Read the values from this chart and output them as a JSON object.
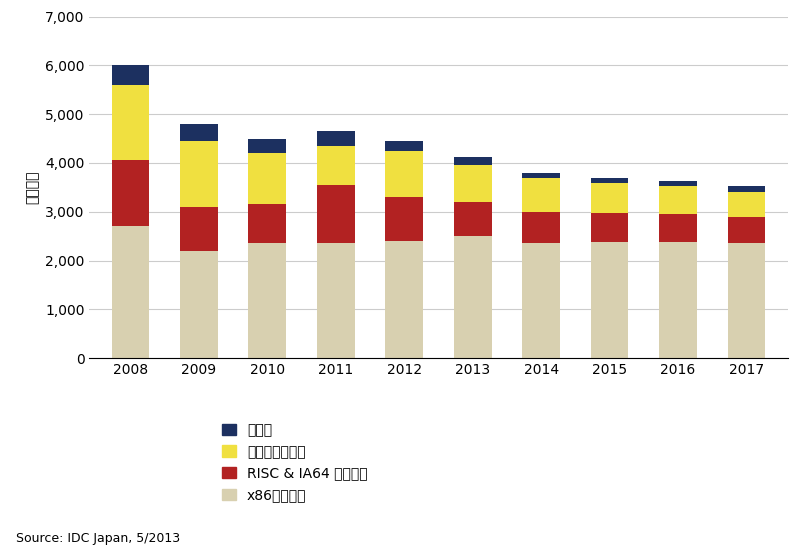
{
  "years": [
    2008,
    2009,
    2010,
    2011,
    2012,
    2013,
    2014,
    2015,
    2016,
    2017
  ],
  "x86": [
    2700,
    2200,
    2350,
    2350,
    2400,
    2500,
    2350,
    2380,
    2370,
    2350
  ],
  "risc_ia64": [
    1350,
    900,
    800,
    1200,
    900,
    700,
    650,
    600,
    580,
    550
  ],
  "mainframe": [
    1550,
    1350,
    1050,
    800,
    950,
    750,
    700,
    600,
    580,
    500
  ],
  "sonota": [
    400,
    350,
    300,
    310,
    190,
    170,
    100,
    120,
    100,
    120
  ],
  "colors": {
    "x86": "#d8d0b0",
    "risc_ia64": "#b22222",
    "mainframe": "#f0e040",
    "sonota": "#1c3060"
  },
  "legend_labels": [
    "その他",
    "メインフレーム",
    "RISC & IA64 サーバー",
    "x86サーバー"
  ],
  "ylabel": "（億円）",
  "ylim": [
    0,
    7000
  ],
  "yticks": [
    0,
    1000,
    2000,
    3000,
    4000,
    5000,
    6000,
    7000
  ],
  "source_text": "Source: IDC Japan, 5/2013",
  "bar_width": 0.55,
  "background_color": "#ffffff",
  "grid_color": "#cccccc"
}
